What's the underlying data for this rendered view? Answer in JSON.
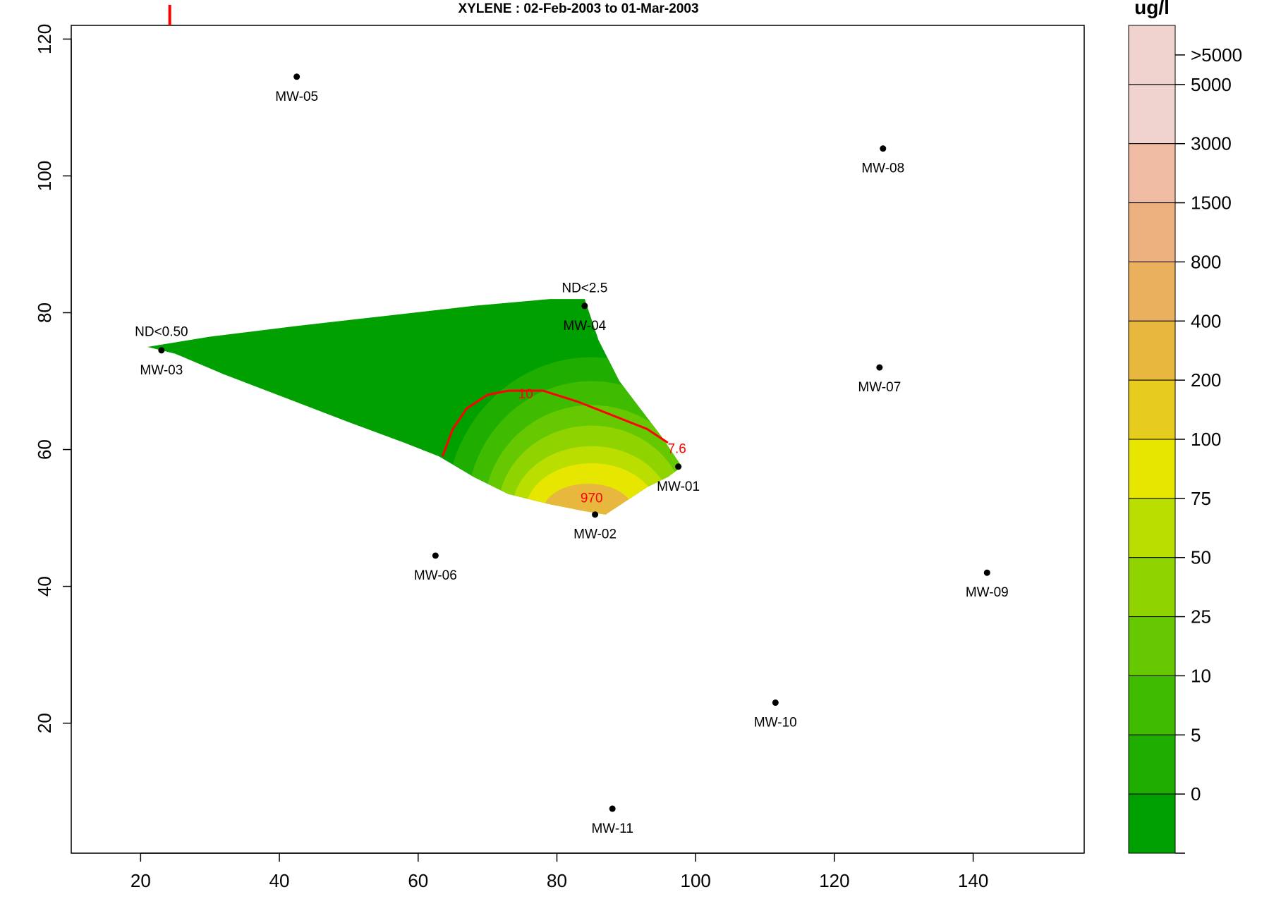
{
  "chart_data": {
    "type": "contour-map",
    "title": "XYLENE  : 02-Feb-2003 to 01-Mar-2003",
    "xlim": [
      10,
      156
    ],
    "ylim": [
      1,
      122
    ],
    "xticks": [
      20,
      40,
      60,
      80,
      100,
      120,
      140
    ],
    "yticks": [
      20,
      40,
      60,
      80,
      100,
      120
    ],
    "wells": [
      {
        "name": "MW-01",
        "x": 97.5,
        "y": 57.5
      },
      {
        "name": "MW-02",
        "x": 85.5,
        "y": 50.5
      },
      {
        "name": "MW-03",
        "x": 23,
        "y": 74.5
      },
      {
        "name": "MW-04",
        "x": 84,
        "y": 81
      },
      {
        "name": "MW-05",
        "x": 42.5,
        "y": 114.5
      },
      {
        "name": "MW-06",
        "x": 62.5,
        "y": 44.5
      },
      {
        "name": "MW-07",
        "x": 126.5,
        "y": 72
      },
      {
        "name": "MW-08",
        "x": 127,
        "y": 104
      },
      {
        "name": "MW-09",
        "x": 142,
        "y": 42
      },
      {
        "name": "MW-10",
        "x": 111.5,
        "y": 23
      },
      {
        "name": "MW-11",
        "x": 88,
        "y": 7.5
      }
    ],
    "nondetect_labels": [
      {
        "text": "ND<0.50",
        "x": 23,
        "y": 77.3
      },
      {
        "text": "ND<2.5",
        "x": 84,
        "y": 83.7
      }
    ],
    "value_labels": [
      {
        "text": "970",
        "x": 85,
        "y": 53
      },
      {
        "text": "7.6",
        "x": 97.3,
        "y": 60.2
      }
    ],
    "contour_lines": [
      {
        "label": "10",
        "label_x": 75.5,
        "label_y": 68.2,
        "points": [
          [
            63.5,
            59
          ],
          [
            65,
            63
          ],
          [
            67,
            66
          ],
          [
            70,
            68
          ],
          [
            73,
            68.6
          ],
          [
            78,
            68.6
          ],
          [
            83,
            67
          ],
          [
            88,
            65
          ],
          [
            93,
            63
          ],
          [
            96,
            61
          ]
        ]
      }
    ],
    "plume_polygon": [
      [
        21,
        75
      ],
      [
        30,
        76.5
      ],
      [
        42,
        78
      ],
      [
        55,
        79.5
      ],
      [
        68,
        81
      ],
      [
        79,
        82
      ],
      [
        84,
        82
      ],
      [
        86,
        76
      ],
      [
        89,
        70
      ],
      [
        92,
        66
      ],
      [
        95,
        62
      ],
      [
        97,
        59
      ],
      [
        98,
        57.5
      ],
      [
        96,
        56
      ],
      [
        93,
        54.5
      ],
      [
        90,
        52.5
      ],
      [
        87,
        50.5
      ],
      [
        84,
        51
      ],
      [
        79,
        52
      ],
      [
        73,
        53.5
      ],
      [
        68,
        56
      ],
      [
        63,
        59
      ],
      [
        58,
        61
      ],
      [
        50,
        64
      ],
      [
        41,
        67.5
      ],
      [
        32,
        71
      ],
      [
        25,
        74
      ]
    ],
    "plume_bands": [
      {
        "level": "5",
        "cx": 85,
        "cy": 51,
        "rx": 21,
        "ry": 22.5
      },
      {
        "level": "10",
        "cx": 85,
        "cy": 51,
        "rx": 18,
        "ry": 19
      },
      {
        "level": "25",
        "cx": 85,
        "cy": 51,
        "rx": 15.5,
        "ry": 15.5
      },
      {
        "level": "50",
        "cx": 85,
        "cy": 51,
        "rx": 13.5,
        "ry": 12.5
      },
      {
        "level": "75",
        "cx": 85,
        "cy": 51,
        "rx": 11.5,
        "ry": 9.5
      },
      {
        "level": "100",
        "cx": 85,
        "cy": 51,
        "rx": 9.5,
        "ry": 7
      },
      {
        "level": "400",
        "cx": 84.5,
        "cy": 51,
        "rx": 6.5,
        "ry": 4
      }
    ],
    "marker_top": {
      "x": 24.2,
      "y0": 122,
      "y1": 125
    },
    "legend": {
      "title": "ug/l",
      "bands": [
        {
          "label": "0",
          "color": "#00a000"
        },
        {
          "label": "5",
          "color": "#1fae00"
        },
        {
          "label": "10",
          "color": "#40bc00"
        },
        {
          "label": "25",
          "color": "#66c800"
        },
        {
          "label": "50",
          "color": "#8fd400"
        },
        {
          "label": "75",
          "color": "#b9de00"
        },
        {
          "label": "100",
          "color": "#e6e600"
        },
        {
          "label": "200",
          "color": "#e6cc1f"
        },
        {
          "label": "400",
          "color": "#e8b73e"
        },
        {
          "label": "800",
          "color": "#ebb05e"
        },
        {
          "label": "1500",
          "color": "#edb07f"
        },
        {
          "label": "3000",
          "color": "#efbba3"
        },
        {
          "label": "5000",
          "color": "#f0d3ce"
        }
      ],
      "top_label": ">5000"
    }
  }
}
